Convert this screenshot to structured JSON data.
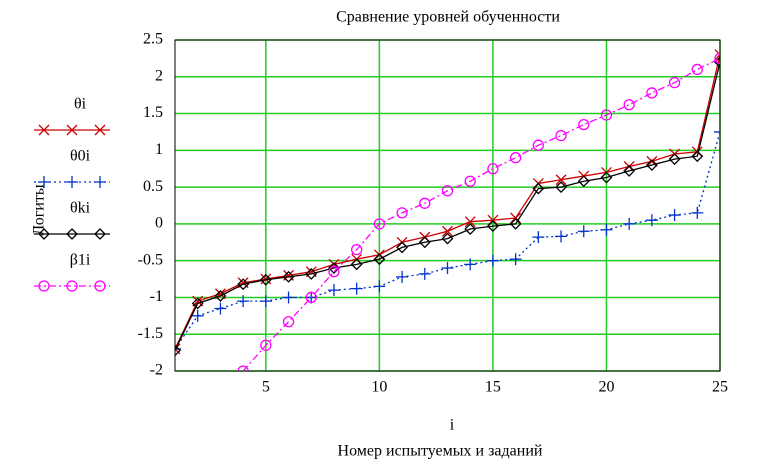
{
  "chart_data": {
    "type": "line",
    "title": "Сравнение уровней обученности",
    "x_label": "i",
    "x_axis_title": "Номер  испытуемых и заданий",
    "y_label": "Логиты",
    "x": [
      1,
      2,
      3,
      4,
      5,
      6,
      7,
      8,
      9,
      10,
      11,
      12,
      13,
      14,
      15,
      16,
      17,
      18,
      19,
      20,
      21,
      22,
      23,
      24,
      25
    ],
    "xlim": [
      1,
      25
    ],
    "xticks": [
      5,
      10,
      15,
      20,
      25
    ],
    "ylim": [
      -2,
      2.5
    ],
    "yticks": [
      -2,
      -1.5,
      -1,
      -0.5,
      0,
      0.5,
      1,
      1.5,
      2,
      2.5
    ],
    "grid": true,
    "legend": "left",
    "series": [
      {
        "name": "θi",
        "color": "#cc0000",
        "marker": "x",
        "dash": "solid",
        "values": [
          -1.7,
          -1.05,
          -0.95,
          -0.8,
          -0.75,
          -0.7,
          -0.65,
          -0.55,
          -0.48,
          -0.42,
          -0.25,
          -0.18,
          -0.1,
          0.03,
          0.05,
          0.08,
          0.55,
          0.6,
          0.65,
          0.7,
          0.78,
          0.85,
          0.95,
          0.98,
          2.3
        ]
      },
      {
        "name": "θ0i",
        "color": "#0033cc",
        "marker": "plus",
        "dash": "dotted",
        "values": [
          -1.7,
          -1.25,
          -1.15,
          -1.05,
          -1.05,
          -1.0,
          -1.0,
          -0.9,
          -0.88,
          -0.85,
          -0.72,
          -0.68,
          -0.6,
          -0.55,
          -0.5,
          -0.48,
          -0.18,
          -0.17,
          -0.1,
          -0.08,
          0.0,
          0.05,
          0.12,
          0.15,
          1.25
        ]
      },
      {
        "name": "θki",
        "color": "#000000",
        "marker": "diamond",
        "dash": "solid",
        "values": [
          -1.72,
          -1.08,
          -0.98,
          -0.82,
          -0.76,
          -0.72,
          -0.68,
          -0.6,
          -0.55,
          -0.48,
          -0.32,
          -0.25,
          -0.2,
          -0.07,
          -0.03,
          0.0,
          0.48,
          0.5,
          0.58,
          0.63,
          0.72,
          0.8,
          0.88,
          0.92,
          2.2
        ]
      },
      {
        "name": "β1i",
        "color": "#ff00ff",
        "marker": "circle",
        "dash": "dashdot",
        "values": [
          null,
          null,
          null,
          -2.0,
          -1.65,
          -1.33,
          -1.0,
          -0.65,
          -0.35,
          0.0,
          0.15,
          0.28,
          0.45,
          0.58,
          0.75,
          0.9,
          1.07,
          1.2,
          1.35,
          1.48,
          1.62,
          1.78,
          1.92,
          2.1,
          2.25
        ]
      }
    ]
  }
}
